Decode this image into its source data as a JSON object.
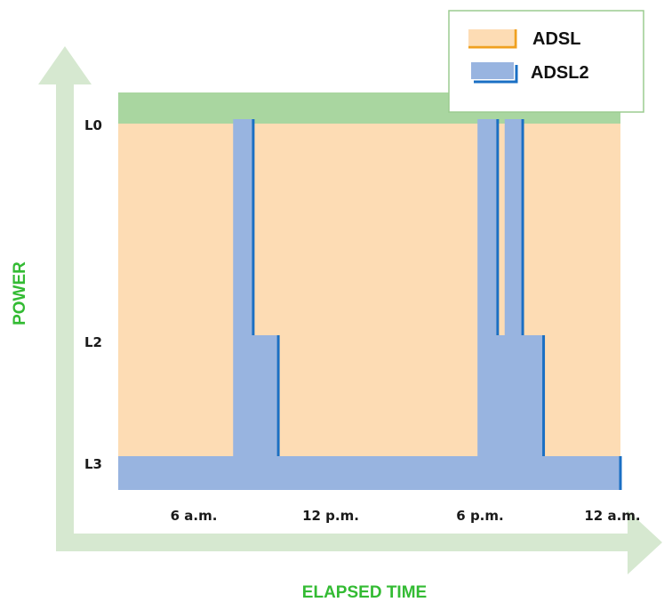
{
  "chart_data": {
    "type": "area",
    "xlabel": "ELAPSED TIME",
    "ylabel": "POWER",
    "x_ticks": [
      "6 a.m.",
      "12 p.m.",
      "6 p.m.",
      "12 a.m."
    ],
    "y_ticks": [
      "L0",
      "L2",
      "L3"
    ],
    "legend_position": "top-right",
    "series": [
      {
        "name": "ADSL",
        "color": "#fddcb4",
        "description_level": "L0",
        "points": [
          {
            "x": 0,
            "level": "L0"
          },
          {
            "x": 24,
            "level": "L0"
          }
        ]
      },
      {
        "name": "ADSL2",
        "color": "#98b4e0",
        "points": [
          {
            "x": 0,
            "level": "L3"
          },
          {
            "x": 5.5,
            "level": "L3"
          },
          {
            "x": 5.5,
            "level": "L0"
          },
          {
            "x": 6.4,
            "level": "L0"
          },
          {
            "x": 6.4,
            "level": "L2"
          },
          {
            "x": 7.6,
            "level": "L2"
          },
          {
            "x": 7.6,
            "level": "L3"
          },
          {
            "x": 17.2,
            "level": "L3"
          },
          {
            "x": 17.2,
            "level": "L0"
          },
          {
            "x": 18.1,
            "level": "L0"
          },
          {
            "x": 18.1,
            "level": "L2"
          },
          {
            "x": 18.5,
            "level": "L2"
          },
          {
            "x": 18.5,
            "level": "L0"
          },
          {
            "x": 19.3,
            "level": "L0"
          },
          {
            "x": 19.3,
            "level": "L2"
          },
          {
            "x": 20.3,
            "level": "L2"
          },
          {
            "x": 20.3,
            "level": "L3"
          },
          {
            "x": 24,
            "level": "L3"
          }
        ]
      }
    ],
    "x_range_hours": [
      0,
      24
    ]
  },
  "colors": {
    "axis_arrow": "#d6e8d0",
    "top_band": "#a9d6a0",
    "adsl_fill": "#fddcb4",
    "adsl_edge": "#f0a020",
    "adsl2_fill": "#98b4e0",
    "adsl2_edge": "#1a6fc4",
    "title_green": "#33bb33",
    "legend_border": "#9ccc90"
  }
}
